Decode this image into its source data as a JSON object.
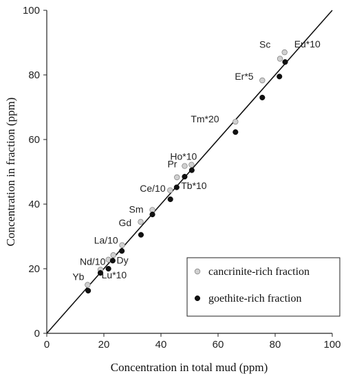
{
  "chart_data": {
    "type": "scatter",
    "title": "",
    "xlabel": "Concentration in total mud (ppm)",
    "ylabel": "Concentration in fraction (ppm)",
    "xlim": [
      0,
      100
    ],
    "ylim": [
      0,
      100
    ],
    "xticks": [
      "0",
      "20",
      "40",
      "60",
      "80",
      "100"
    ],
    "yticks": [
      "0",
      "20",
      "40",
      "60",
      "80",
      "100"
    ],
    "grid": false,
    "reference_line": {
      "x": [
        0,
        100
      ],
      "y": [
        0,
        100
      ]
    },
    "legend_position": "bottom-right",
    "series": [
      {
        "name": "cancrinite-rich fraction",
        "color": "#d0d0d0",
        "points": [
          {
            "x": 14.3,
            "y": 15.0
          },
          {
            "x": 18.8,
            "y": 19.7
          },
          {
            "x": 21.6,
            "y": 22.8
          },
          {
            "x": 23.3,
            "y": 24.2
          },
          {
            "x": 26.4,
            "y": 27.3
          },
          {
            "x": 32.9,
            "y": 34.5
          },
          {
            "x": 37.0,
            "y": 38.2
          },
          {
            "x": 43.2,
            "y": 44.3
          },
          {
            "x": 45.6,
            "y": 48.3
          },
          {
            "x": 48.3,
            "y": 51.8
          },
          {
            "x": 50.7,
            "y": 52.2
          },
          {
            "x": 66.1,
            "y": 65.5
          },
          {
            "x": 75.5,
            "y": 78.3
          },
          {
            "x": 81.7,
            "y": 85.0
          },
          {
            "x": 83.3,
            "y": 87.0
          }
        ]
      },
      {
        "name": "goethite-rich fraction",
        "color": "#111111",
        "points": [
          {
            "x": 14.5,
            "y": 13.2
          },
          {
            "x": 18.8,
            "y": 18.7
          },
          {
            "x": 21.6,
            "y": 20.0
          },
          {
            "x": 23.1,
            "y": 22.5
          },
          {
            "x": 26.3,
            "y": 25.5
          },
          {
            "x": 33.0,
            "y": 30.5
          },
          {
            "x": 37.0,
            "y": 36.8
          },
          {
            "x": 43.3,
            "y": 41.5
          },
          {
            "x": 45.5,
            "y": 45.2
          },
          {
            "x": 48.3,
            "y": 48.5
          },
          {
            "x": 50.8,
            "y": 50.5
          },
          {
            "x": 66.1,
            "y": 62.3
          },
          {
            "x": 75.5,
            "y": 73.0
          },
          {
            "x": 81.5,
            "y": 79.5
          },
          {
            "x": 83.5,
            "y": 84.0
          }
        ]
      }
    ],
    "annotations": [
      {
        "text": "Yb",
        "x": 14.4
      },
      {
        "text": "Nd/10",
        "x": 18.8
      },
      {
        "text": "Lu*10",
        "x": 21.6
      },
      {
        "text": "La/10",
        "x": 23.2
      },
      {
        "text": "Dy",
        "x": 26.4
      },
      {
        "text": "Gd",
        "x": 33.0
      },
      {
        "text": "Sm",
        "x": 37.0
      },
      {
        "text": "Ce/10",
        "x": 43.2
      },
      {
        "text": "Tb*10",
        "x": 45.5
      },
      {
        "text": "Pr",
        "x": 48.3
      },
      {
        "text": "Ho*10",
        "x": 50.7
      },
      {
        "text": "Tm*20",
        "x": 66.1
      },
      {
        "text": "Er*5",
        "x": 75.5
      },
      {
        "text": "Sc",
        "x": 81.6
      },
      {
        "text": "Eu*10",
        "x": 83.4
      }
    ]
  }
}
